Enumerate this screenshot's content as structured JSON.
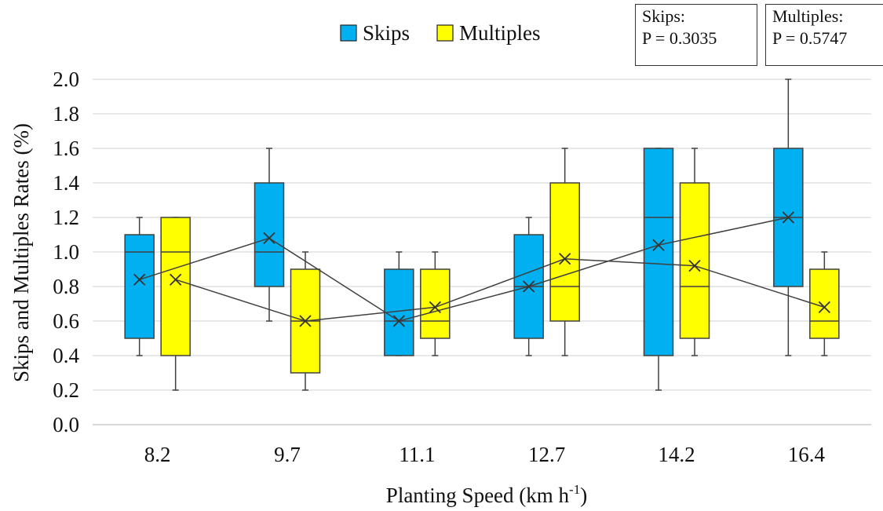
{
  "chart_data": {
    "type": "box",
    "xlabel": "Planting Speed (km h",
    "xlabel_sup": "-1",
    "xlabel_end": ")",
    "ylabel": "Skips and Multiples Rates (%)",
    "ylim": [
      0,
      2.0
    ],
    "yticks": [
      "0.0",
      "0.2",
      "0.4",
      "0.6",
      "0.8",
      "1.0",
      "1.2",
      "1.4",
      "1.6",
      "1.8",
      "2.0"
    ],
    "categories": [
      "8.2",
      "9.7",
      "11.1",
      "12.7",
      "14.2",
      "16.4"
    ],
    "grid": "horizontal",
    "legend_position": "top",
    "series": [
      {
        "name": "Skips",
        "color": "#00B0F0",
        "boxes": [
          {
            "min": 0.4,
            "q1": 0.5,
            "median": 1.0,
            "q3": 1.1,
            "max": 1.2,
            "mean": 0.84
          },
          {
            "min": 0.6,
            "q1": 0.8,
            "median": 1.0,
            "q3": 1.4,
            "max": 1.6,
            "mean": 1.08
          },
          {
            "min": 0.4,
            "q1": 0.4,
            "median": 0.6,
            "q3": 0.9,
            "max": 1.0,
            "mean": 0.6
          },
          {
            "min": 0.4,
            "q1": 0.5,
            "median": 0.8,
            "q3": 1.1,
            "max": 1.2,
            "mean": 0.8
          },
          {
            "min": 0.2,
            "q1": 0.4,
            "median": 1.2,
            "q3": 1.6,
            "max": 1.6,
            "mean": 1.04
          },
          {
            "min": 0.4,
            "q1": 0.8,
            "median": 1.2,
            "q3": 1.6,
            "max": 2.0,
            "mean": 1.2
          }
        ]
      },
      {
        "name": "Multiples",
        "color": "#FFFF00",
        "boxes": [
          {
            "min": 0.2,
            "q1": 0.4,
            "median": 1.0,
            "q3": 1.2,
            "max": 1.2,
            "mean": 0.84
          },
          {
            "min": 0.2,
            "q1": 0.3,
            "median": 0.6,
            "q3": 0.9,
            "max": 1.0,
            "mean": 0.6
          },
          {
            "min": 0.4,
            "q1": 0.5,
            "median": 0.6,
            "q3": 0.9,
            "max": 1.0,
            "mean": 0.68
          },
          {
            "min": 0.4,
            "q1": 0.6,
            "median": 0.8,
            "q3": 1.4,
            "max": 1.6,
            "mean": 0.96
          },
          {
            "min": 0.4,
            "q1": 0.5,
            "median": 0.8,
            "q3": 1.4,
            "max": 1.6,
            "mean": 0.92
          },
          {
            "min": 0.4,
            "q1": 0.5,
            "median": 0.6,
            "q3": 0.9,
            "max": 1.0,
            "mean": 0.68
          }
        ]
      }
    ],
    "annotations": [
      {
        "line1": "Skips:",
        "line2": "P = 0.3035"
      },
      {
        "line1": "Multiples:",
        "line2": "P = 0.5747"
      }
    ]
  }
}
